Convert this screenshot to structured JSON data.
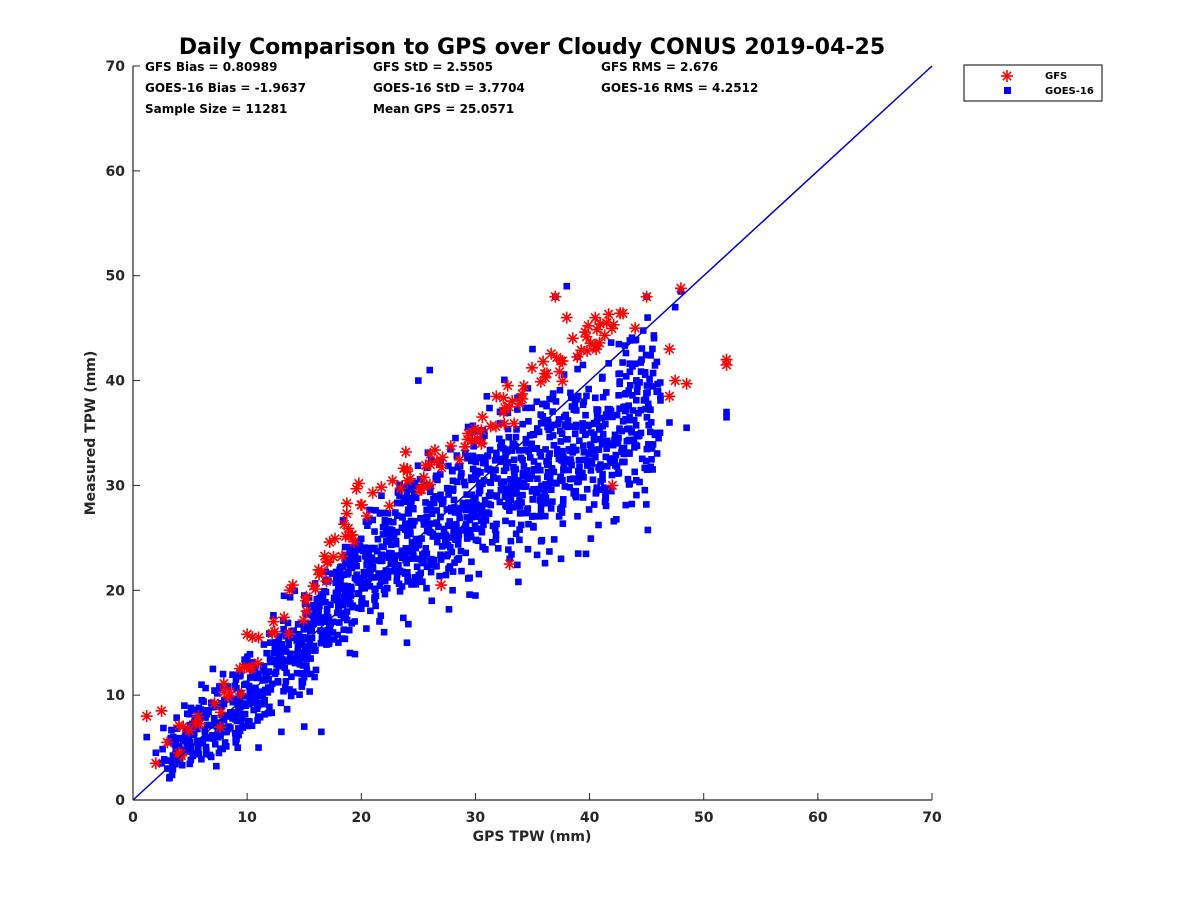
{
  "chart_data": {
    "type": "scatter",
    "title": "Daily Comparison to GPS over Cloudy CONUS 2019-04-25",
    "xlabel": "GPS TPW (mm)",
    "ylabel": "Measured TPW (mm)",
    "xlim": [
      0,
      70
    ],
    "ylim": [
      0,
      70
    ],
    "xticks": [
      0,
      10,
      20,
      30,
      40,
      50,
      60,
      70
    ],
    "yticks": [
      0,
      10,
      20,
      30,
      40,
      50,
      60,
      70
    ],
    "grid": false,
    "legend_position": "top-right-outside",
    "reference_line": {
      "x": [
        0,
        70
      ],
      "y": [
        0,
        70
      ],
      "color": "#0000cc"
    },
    "stats": {
      "row1": [
        "GFS Bias = 0.80989",
        "GFS StD = 2.5505",
        "GFS RMS = 2.676"
      ],
      "row2": [
        "GOES-16 Bias = -1.9637",
        "GOES-16 StD = 3.7704",
        "GOES-16 RMS = 4.2512"
      ],
      "row3": [
        "Sample Size = 11281",
        "Mean GPS = 25.0571"
      ]
    },
    "series": [
      {
        "name": "GOES-16",
        "marker": "square",
        "color": "#0000ff",
        "point_count": 11281,
        "cluster": [
          [
            3,
            4.5
          ],
          [
            5,
            6
          ],
          [
            8,
            8
          ],
          [
            10,
            10
          ],
          [
            12,
            12
          ],
          [
            14,
            14
          ],
          [
            16,
            16
          ],
          [
            18,
            19
          ],
          [
            20,
            21
          ],
          [
            22,
            23
          ],
          [
            24,
            25
          ],
          [
            26,
            26.5
          ],
          [
            28,
            27.5
          ],
          [
            30,
            29
          ],
          [
            32,
            30
          ],
          [
            34,
            31
          ],
          [
            36,
            32
          ],
          [
            38,
            33
          ],
          [
            40,
            34
          ],
          [
            42,
            35
          ],
          [
            44,
            36
          ],
          [
            46,
            38
          ]
        ],
        "outliers": [
          [
            1.2,
            6
          ],
          [
            2,
            4.5
          ],
          [
            2.5,
            3.5
          ],
          [
            3,
            3
          ],
          [
            4.5,
            9
          ],
          [
            6,
            11
          ],
          [
            7,
            12.5
          ],
          [
            9,
            5.5
          ],
          [
            11,
            5
          ],
          [
            13,
            6.5
          ],
          [
            15,
            7
          ],
          [
            16.5,
            6.5
          ],
          [
            22,
            16
          ],
          [
            24,
            15
          ],
          [
            25,
            40
          ],
          [
            26,
            41
          ],
          [
            28,
            20
          ],
          [
            30,
            19.5
          ],
          [
            31,
            38.5
          ],
          [
            32,
            24
          ],
          [
            33,
            23
          ],
          [
            35,
            43
          ],
          [
            37,
            48
          ],
          [
            37.5,
            23
          ],
          [
            38,
            49
          ],
          [
            39,
            23.5
          ],
          [
            43,
            33
          ],
          [
            45,
            48
          ],
          [
            46,
            39
          ],
          [
            47,
            36
          ],
          [
            47.5,
            47
          ],
          [
            48,
            48.5
          ],
          [
            48.5,
            35.5
          ],
          [
            52,
            37
          ],
          [
            52,
            36.5
          ]
        ]
      },
      {
        "name": "GFS",
        "marker": "asterisk",
        "color": "#ff0000",
        "cluster": [
          [
            4,
            6
          ],
          [
            8,
            10
          ],
          [
            12,
            15
          ],
          [
            15,
            19
          ],
          [
            17,
            23
          ],
          [
            19,
            26
          ],
          [
            22,
            30
          ],
          [
            28,
            33
          ],
          [
            33,
            38
          ],
          [
            36,
            41
          ],
          [
            38,
            42
          ],
          [
            39,
            43
          ],
          [
            41,
            44
          ],
          [
            43,
            46
          ]
        ],
        "outliers": [
          [
            1.2,
            8
          ],
          [
            2.5,
            8.5
          ],
          [
            2,
            3.5
          ],
          [
            3,
            5.5
          ],
          [
            10,
            15.8
          ],
          [
            11,
            15.5
          ],
          [
            14,
            20.5
          ],
          [
            18.5,
            26.3
          ],
          [
            21,
            29.3
          ],
          [
            27,
            20.5
          ],
          [
            33,
            22.5
          ],
          [
            37,
            48
          ],
          [
            38,
            46
          ],
          [
            40.5,
            46
          ],
          [
            41.5,
            45.5
          ],
          [
            42,
            30
          ],
          [
            44,
            45
          ],
          [
            45,
            48
          ],
          [
            47,
            43
          ],
          [
            47.5,
            40
          ],
          [
            48,
            48.8
          ],
          [
            48.5,
            39.7
          ],
          [
            52,
            42
          ],
          [
            52,
            41.5
          ],
          [
            47,
            38.5
          ]
        ]
      }
    ]
  }
}
